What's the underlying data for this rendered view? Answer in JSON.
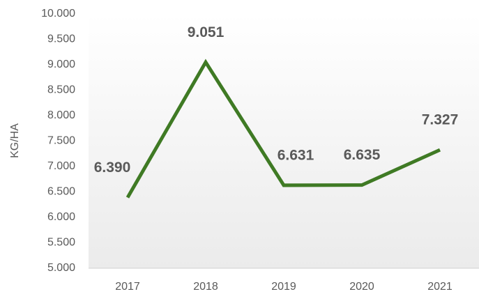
{
  "chart_data": {
    "type": "line",
    "y_label": "KG/HA",
    "categories": [
      "2017",
      "2018",
      "2019",
      "2020",
      "2021"
    ],
    "series": [
      {
        "color": "#3f7a24",
        "values": [
          6390,
          9051,
          6631,
          6635,
          7327
        ],
        "value_labels": [
          "6.390",
          "9.051",
          "6.631",
          "6.635",
          "7.327"
        ]
      }
    ],
    "ylim": [
      5000,
      10000
    ],
    "yticks": [
      {
        "value": 5000,
        "label": "5.000"
      },
      {
        "value": 5500,
        "label": "5.500"
      },
      {
        "value": 6000,
        "label": "6.000"
      },
      {
        "value": 6500,
        "label": "6.500"
      },
      {
        "value": 7000,
        "label": "7.000"
      },
      {
        "value": 7500,
        "label": "7.500"
      },
      {
        "value": 8000,
        "label": "8.000"
      },
      {
        "value": 8500,
        "label": "8.500"
      },
      {
        "value": 9000,
        "label": "9.000"
      },
      {
        "value": 9500,
        "label": "9.500"
      },
      {
        "value": 10000,
        "label": "10.000"
      }
    ],
    "grid": false
  }
}
